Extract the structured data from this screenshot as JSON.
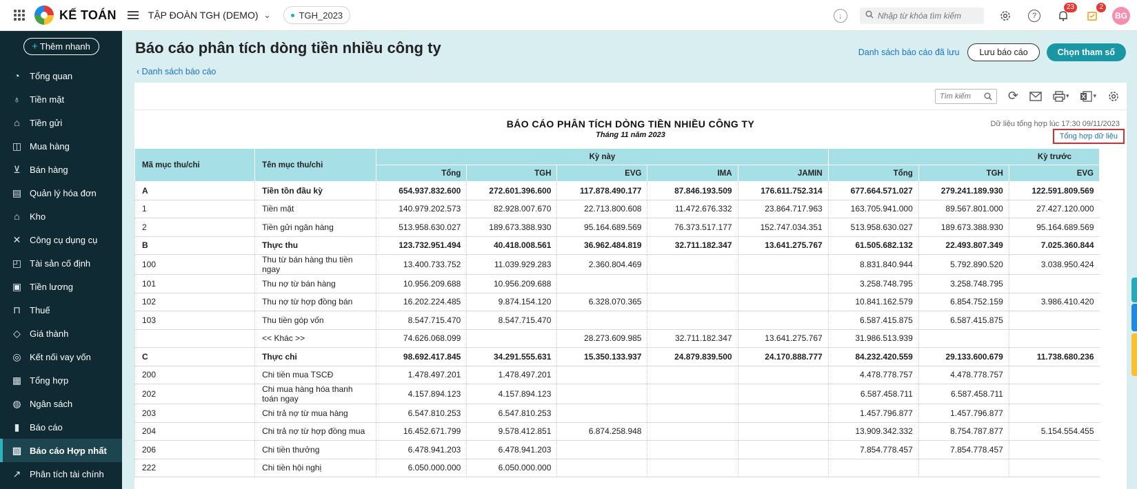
{
  "topbar": {
    "brand": "KẾ TOÁN",
    "company": "TẬP ĐOÀN TGH (DEMO)",
    "database": "TGH_2023",
    "search_placeholder": "Nhập từ khóa tìm kiếm",
    "notifications_count": "23",
    "tasks_count": "2",
    "avatar_initials": "BG"
  },
  "sidebar": {
    "quick_add": "Thêm nhanh",
    "items": [
      {
        "label": "Tổng quan",
        "icon": "dashboard-icon"
      },
      {
        "label": "Tiền mặt",
        "icon": "money-bag-icon"
      },
      {
        "label": "Tiền gửi",
        "icon": "bank-icon"
      },
      {
        "label": "Mua hàng",
        "icon": "shopping-bag-icon"
      },
      {
        "label": "Bán hàng",
        "icon": "cart-icon"
      },
      {
        "label": "Quản lý hóa đơn",
        "icon": "invoice-icon"
      },
      {
        "label": "Kho",
        "icon": "warehouse-icon"
      },
      {
        "label": "Công cụ dụng cụ",
        "icon": "tools-icon"
      },
      {
        "label": "Tài sản cố định",
        "icon": "car-icon"
      },
      {
        "label": "Tiền lương",
        "icon": "salary-icon"
      },
      {
        "label": "Thuế",
        "icon": "tax-icon"
      },
      {
        "label": "Giá thành",
        "icon": "price-tag-icon"
      },
      {
        "label": "Kết nối vay vốn",
        "icon": "loan-icon"
      },
      {
        "label": "Tổng hợp",
        "icon": "summary-icon"
      },
      {
        "label": "Ngân sách",
        "icon": "budget-icon"
      },
      {
        "label": "Báo cáo",
        "icon": "bar-chart-icon"
      },
      {
        "label": "Báo cáo Hợp nhất",
        "icon": "consolidated-report-icon",
        "active": true
      },
      {
        "label": "Phân tích tài chính",
        "icon": "line-chart-icon"
      }
    ]
  },
  "page": {
    "title": "Báo cáo phân tích dòng tiền nhiều công ty",
    "back_link": "Danh sách báo cáo",
    "saved_reports_link": "Danh sách báo cáo đã lưu",
    "save_button": "Lưu báo cáo",
    "params_button": "Chọn tham số"
  },
  "toolbar": {
    "search_placeholder": "Tìm kiếm"
  },
  "report": {
    "title": "BÁO CÁO PHÂN TÍCH DÒNG TIỀN NHIỀU CÔNG TY",
    "subtitle": "Tháng 11 năm 2023",
    "data_time": "Dữ liệu tổng hợp lúc 17:30 09/11/2023",
    "sync_link": "Tổng hợp dữ liệu",
    "headers": {
      "code": "Mã mục thu/chi",
      "name": "Tên mục thu/chi",
      "current_period": "Kỳ này",
      "previous_period": "Kỳ trước",
      "current_cols": [
        "Tổng",
        "TGH",
        "EVG",
        "IMA",
        "JAMIN"
      ],
      "previous_cols": [
        "Tổng",
        "TGH",
        "EVG"
      ]
    },
    "rows": [
      {
        "code": "A",
        "name": "Tiền tồn đầu kỳ",
        "bold": true,
        "values": [
          "654.937.832.600",
          "272.601.396.600",
          "117.878.490.177",
          "87.846.193.509",
          "176.611.752.314",
          "677.664.571.027",
          "279.241.189.930",
          "122.591.809.569"
        ]
      },
      {
        "code": "1",
        "name": "Tiền mặt",
        "values": [
          "140.979.202.573",
          "82.928.007.670",
          "22.713.800.608",
          "11.472.676.332",
          "23.864.717.963",
          "163.705.941.000",
          "89.567.801.000",
          "27.427.120.000"
        ]
      },
      {
        "code": "2",
        "name": "Tiền gửi ngân hàng",
        "values": [
          "513.958.630.027",
          "189.673.388.930",
          "95.164.689.569",
          "76.373.517.177",
          "152.747.034.351",
          "513.958.630.027",
          "189.673.388.930",
          "95.164.689.569"
        ]
      },
      {
        "code": "B",
        "name": "Thực thu",
        "bold": true,
        "values": [
          "123.732.951.494",
          "40.418.008.561",
          "36.962.484.819",
          "32.711.182.347",
          "13.641.275.767",
          "61.505.682.132",
          "22.493.807.349",
          "7.025.360.844"
        ]
      },
      {
        "code": "100",
        "name": "Thu từ bán hàng thu tiền ngay",
        "values": [
          "13.400.733.752",
          "11.039.929.283",
          "2.360.804.469",
          "",
          "",
          "8.831.840.944",
          "5.792.890.520",
          "3.038.950.424"
        ]
      },
      {
        "code": "101",
        "name": "Thu nợ từ bán hàng",
        "values": [
          "10.956.209.688",
          "10.956.209.688",
          "",
          "",
          "",
          "3.258.748.795",
          "3.258.748.795",
          ""
        ]
      },
      {
        "code": "102",
        "name": "Thu nợ từ hợp đồng bán",
        "values": [
          "16.202.224.485",
          "9.874.154.120",
          "6.328.070.365",
          "",
          "",
          "10.841.162.579",
          "6.854.752.159",
          "3.986.410.420"
        ]
      },
      {
        "code": "103",
        "name": "Thu tiền góp vốn",
        "values": [
          "8.547.715.470",
          "8.547.715.470",
          "",
          "",
          "",
          "6.587.415.875",
          "6.587.415.875",
          ""
        ]
      },
      {
        "code": "",
        "name": "<< Khác >>",
        "values": [
          "74.626.068.099",
          "",
          "28.273.609.985",
          "32.711.182.347",
          "13.641.275.767",
          "31.986.513.939",
          "",
          ""
        ]
      },
      {
        "code": "C",
        "name": "Thực chi",
        "bold": true,
        "values": [
          "98.692.417.845",
          "34.291.555.631",
          "15.350.133.937",
          "24.879.839.500",
          "24.170.888.777",
          "84.232.420.559",
          "29.133.600.679",
          "11.738.680.236"
        ]
      },
      {
        "code": "200",
        "name": "Chi tiền mua TSCĐ",
        "values": [
          "1.478.497.201",
          "1.478.497.201",
          "",
          "",
          "",
          "4.478.778.757",
          "4.478.778.757",
          ""
        ]
      },
      {
        "code": "202",
        "name": "Chi mua hàng hóa thanh toán ngay",
        "values": [
          "4.157.894.123",
          "4.157.894.123",
          "",
          "",
          "",
          "6.587.458.711",
          "6.587.458.711",
          ""
        ]
      },
      {
        "code": "203",
        "name": "Chi trả nợ từ mua hàng",
        "values": [
          "6.547.810.253",
          "6.547.810.253",
          "",
          "",
          "",
          "1.457.796.877",
          "1.457.796.877",
          ""
        ]
      },
      {
        "code": "204",
        "name": "Chi trả nợ từ hợp đồng mua",
        "values": [
          "16.452.671.799",
          "9.578.412.851",
          "6.874.258.948",
          "",
          "",
          "13.909.342.332",
          "8.754.787.877",
          "5.154.554.455"
        ]
      },
      {
        "code": "206",
        "name": "Chi tiền thưởng",
        "values": [
          "6.478.941.203",
          "6.478.941.203",
          "",
          "",
          "",
          "7.854.778.457",
          "7.854.778.457",
          ""
        ]
      },
      {
        "code": "222",
        "name": "Chi tiền hội nghị",
        "values": [
          "6.050.000.000",
          "6.050.000.000",
          "",
          "",
          "",
          "",
          "",
          ""
        ]
      }
    ]
  }
}
